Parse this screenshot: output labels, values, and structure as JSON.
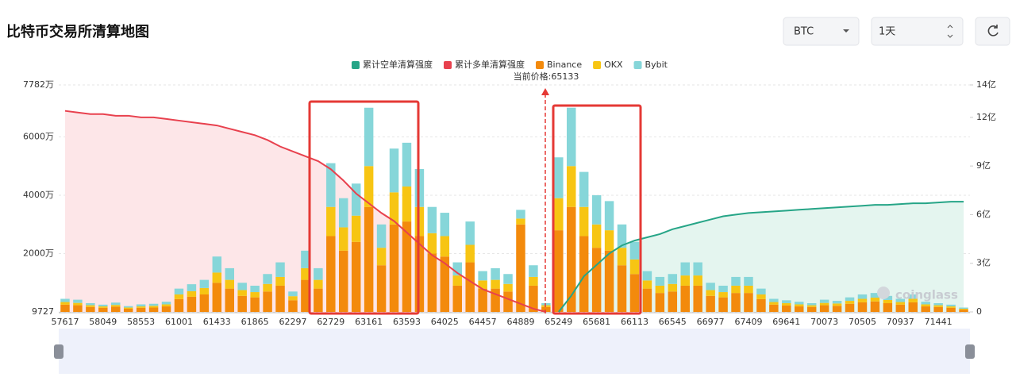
{
  "header": {
    "title": "比特币交易所清算地图",
    "coin": "BTC",
    "period": "1天"
  },
  "watermark": "coinglass",
  "chart_data": {
    "type": "bar",
    "stacked": true,
    "annotation": "当前价格:65133",
    "categories": [
      "57617",
      null,
      null,
      "58049",
      null,
      null,
      "58553",
      null,
      null,
      "61001",
      null,
      null,
      "61433",
      null,
      null,
      "61865",
      null,
      null,
      "62297",
      null,
      null,
      "62729",
      null,
      null,
      "63161",
      null,
      null,
      "63593",
      null,
      null,
      "64025",
      null,
      null,
      "64457",
      null,
      null,
      "64889",
      null,
      null,
      "65249",
      null,
      null,
      "65681",
      null,
      null,
      "66113",
      null,
      null,
      "66545",
      null,
      null,
      "66977",
      null,
      null,
      "67409",
      null,
      null,
      "69641",
      null,
      null,
      "70073",
      null,
      null,
      "70505",
      null,
      null,
      "70937",
      null,
      null,
      "71441",
      null,
      null
    ],
    "ylim": [
      0.9727,
      7782
    ],
    "yticks": [
      {
        "value": 0.9727,
        "label": "9727"
      },
      {
        "value": 2000,
        "label": "2000万"
      },
      {
        "value": 4000,
        "label": "4000万"
      },
      {
        "value": 6000,
        "label": "6000万"
      },
      {
        "value": 7782,
        "label": "7782万"
      }
    ],
    "y2lim": [
      0,
      14
    ],
    "y2ticks": [
      0,
      {
        "value": 3,
        "label": "3亿"
      },
      {
        "value": 6,
        "label": "6亿"
      },
      {
        "value": 9,
        "label": "9亿"
      },
      {
        "value": 12,
        "label": "12亿"
      },
      {
        "value": 14,
        "label": "14亿"
      }
    ],
    "grid": true,
    "series": [
      {
        "name": "累计空单清算强度",
        "type": "line",
        "axis": "y2",
        "color": "#26a587",
        "fill": "#e4f5ef",
        "values": [
          null,
          null,
          null,
          null,
          null,
          null,
          null,
          null,
          null,
          null,
          null,
          null,
          null,
          null,
          null,
          null,
          null,
          null,
          null,
          null,
          null,
          null,
          null,
          null,
          null,
          null,
          null,
          null,
          null,
          null,
          null,
          null,
          null,
          null,
          null,
          null,
          null,
          null,
          null,
          0,
          1.0,
          2.2,
          2.9,
          3.6,
          4.1,
          4.4,
          4.6,
          4.8,
          5.1,
          5.3,
          5.5,
          5.7,
          5.9,
          6.0,
          6.1,
          6.15,
          6.2,
          6.25,
          6.3,
          6.35,
          6.4,
          6.45,
          6.5,
          6.55,
          6.6,
          6.6,
          6.65,
          6.7,
          6.7,
          6.75,
          6.8,
          6.8
        ]
      },
      {
        "name": "累计多单清算强度",
        "type": "line",
        "axis": "y2",
        "color": "#e8414e",
        "fill": "#fde6e8",
        "values": [
          12.4,
          12.3,
          12.2,
          12.2,
          12.1,
          12.1,
          12.0,
          12.0,
          11.9,
          11.8,
          11.7,
          11.6,
          11.5,
          11.3,
          11.1,
          10.9,
          10.6,
          10.2,
          9.9,
          9.6,
          9.3,
          8.8,
          8.1,
          7.3,
          6.7,
          6.1,
          5.6,
          4.9,
          4.2,
          3.5,
          3.0,
          2.4,
          1.9,
          1.4,
          1.1,
          0.8,
          0.5,
          0.2,
          0,
          null,
          null,
          null,
          null,
          null,
          null,
          null,
          null,
          null,
          null,
          null,
          null,
          null,
          null,
          null,
          null,
          null,
          null,
          null,
          null,
          null,
          null,
          null,
          null,
          null,
          null,
          null,
          null,
          null,
          null,
          null,
          null,
          null
        ]
      },
      {
        "name": "Binance",
        "color": "#f38a0c",
        "values": [
          250,
          230,
          170,
          140,
          180,
          110,
          140,
          150,
          190,
          440,
          520,
          600,
          1000,
          800,
          550,
          500,
          700,
          900,
          400,
          1100,
          800,
          2600,
          2100,
          2400,
          3600,
          1600,
          3000,
          3100,
          2600,
          2000,
          1900,
          900,
          1700,
          800,
          800,
          700,
          3000,
          900,
          170,
          2800,
          3600,
          2600,
          2200,
          2100,
          1600,
          1300,
          800,
          650,
          700,
          900,
          900,
          550,
          500,
          650,
          650,
          440,
          250,
          220,
          190,
          170,
          230,
          210,
          280,
          330,
          360,
          300,
          250,
          330,
          190,
          170,
          140,
          80
        ]
      },
      {
        "name": "OKX",
        "color": "#f7c513",
        "values": [
          90,
          80,
          60,
          50,
          60,
          40,
          50,
          60,
          70,
          160,
          190,
          220,
          350,
          300,
          200,
          180,
          260,
          300,
          140,
          400,
          300,
          1000,
          800,
          900,
          1400,
          600,
          1100,
          1200,
          1000,
          700,
          700,
          350,
          600,
          280,
          300,
          260,
          200,
          300,
          60,
          1100,
          1400,
          1000,
          800,
          700,
          600,
          500,
          280,
          250,
          260,
          350,
          350,
          200,
          180,
          250,
          250,
          160,
          90,
          80,
          70,
          60,
          80,
          80,
          100,
          120,
          130,
          110,
          90,
          120,
          70,
          60,
          50,
          30
        ]
      },
      {
        "name": "Bybit",
        "color": "#86d6d9",
        "values": [
          110,
          110,
          70,
          60,
          80,
          50,
          70,
          70,
          90,
          200,
          240,
          280,
          550,
          400,
          250,
          220,
          340,
          500,
          160,
          600,
          400,
          1500,
          1000,
          1100,
          2000,
          800,
          1500,
          1500,
          1300,
          900,
          800,
          450,
          800,
          320,
          400,
          340,
          300,
          400,
          70,
          1400,
          2000,
          1200,
          1000,
          1000,
          800,
          600,
          320,
          300,
          340,
          450,
          450,
          250,
          220,
          300,
          300,
          200,
          110,
          100,
          90,
          70,
          110,
          90,
          120,
          150,
          160,
          140,
          110,
          150,
          90,
          70,
          60,
          40
        ]
      }
    ]
  }
}
